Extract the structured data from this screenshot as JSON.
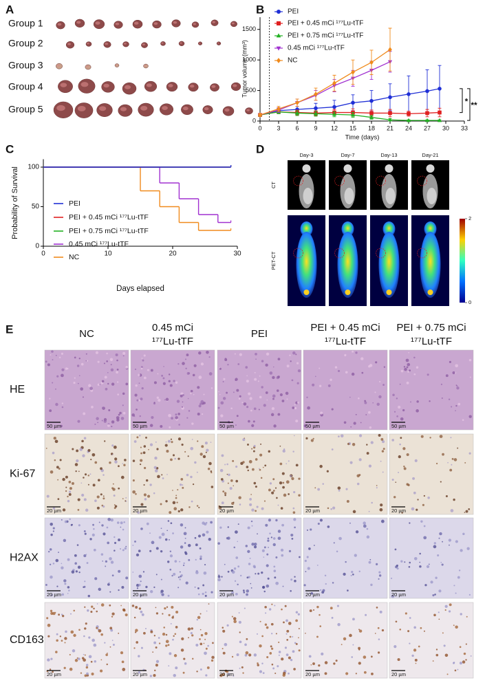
{
  "panel_a": {
    "label": "A",
    "groups": [
      "Group 1",
      "Group 2",
      "Group 3",
      "Group 4",
      "Group 5"
    ]
  },
  "chart_data": [
    {
      "type": "line",
      "label": "B",
      "x_label": "Time (days)",
      "y_label": "Tumor volume (mm³)",
      "xlim": [
        0,
        33
      ],
      "xticks": [
        0,
        3,
        6,
        9,
        12,
        15,
        18,
        21,
        24,
        27,
        30,
        33
      ],
      "ylim": [
        0,
        1700
      ],
      "yticks": [
        0,
        500,
        1000,
        1500
      ],
      "vline_x": 1.5,
      "series": [
        {
          "name": "PEI",
          "color": "#1f2fd6",
          "marker": "circle",
          "x": [
            0,
            3,
            6,
            9,
            12,
            15,
            18,
            21,
            24,
            27,
            29
          ],
          "values": [
            100,
            170,
            190,
            210,
            230,
            300,
            330,
            390,
            440,
            490,
            530
          ],
          "errors": [
            20,
            40,
            50,
            80,
            110,
            130,
            170,
            220,
            300,
            350,
            380
          ]
        },
        {
          "name": "PEI + 0.45 mCi ¹⁷⁷Lu-tTF",
          "color": "#e02020",
          "marker": "square",
          "x": [
            0,
            3,
            6,
            9,
            12,
            15,
            18,
            21,
            24,
            27,
            29
          ],
          "values": [
            100,
            150,
            140,
            130,
            140,
            140,
            130,
            130,
            120,
            130,
            140
          ],
          "errors": [
            20,
            30,
            40,
            40,
            50,
            60,
            50,
            60,
            40,
            60,
            70
          ]
        },
        {
          "name": "PEI + 0.75 mCi ¹⁷⁷Lu-tTF",
          "color": "#22b022",
          "marker": "triangle-up",
          "x": [
            0,
            3,
            6,
            9,
            12,
            15,
            18,
            21,
            24,
            27,
            29
          ],
          "values": [
            100,
            150,
            130,
            120,
            110,
            100,
            60,
            20,
            10,
            10,
            10
          ],
          "errors": [
            20,
            30,
            40,
            40,
            40,
            40,
            30,
            20,
            10,
            10,
            10
          ]
        },
        {
          "name": "0.45 mCi ¹⁷⁷Lu-tTF",
          "color": "#a030d0",
          "marker": "triangle-down",
          "x": [
            0,
            3,
            6,
            9,
            12,
            15,
            18,
            21
          ],
          "values": [
            100,
            180,
            300,
            420,
            580,
            700,
            830,
            970
          ],
          "errors": [
            20,
            40,
            60,
            80,
            100,
            130,
            150,
            170
          ]
        },
        {
          "name": "NC",
          "color": "#f08a1c",
          "marker": "diamond",
          "x": [
            0,
            3,
            6,
            9,
            12,
            15,
            18,
            21
          ],
          "values": [
            100,
            200,
            300,
            440,
            620,
            800,
            960,
            1170
          ],
          "errors": [
            20,
            40,
            60,
            100,
            130,
            200,
            200,
            350
          ]
        }
      ],
      "significance": [
        {
          "label": "*",
          "series": [
            0,
            1
          ]
        },
        {
          "label": "**",
          "series": [
            0,
            2
          ]
        }
      ]
    },
    {
      "type": "line",
      "step": true,
      "label": "C",
      "x_label": "Days elapsed",
      "y_label": "Probability of Survival",
      "xlim": [
        0,
        30
      ],
      "xticks": [
        0,
        10,
        20,
        30
      ],
      "ylim": [
        0,
        110
      ],
      "yticks": [
        0,
        50,
        100
      ],
      "series": [
        {
          "name": "PEI",
          "color": "#1f2fd6",
          "x": [
            0,
            29
          ],
          "values": [
            100,
            100
          ]
        },
        {
          "name": "PEI + 0.45 mCi ¹⁷⁷Lu-tTF",
          "color": "#e02020",
          "x": [
            0,
            29
          ],
          "values": [
            100,
            100
          ]
        },
        {
          "name": "PEI + 0.75 mCi ¹⁷⁷Lu-tTF",
          "color": "#22b022",
          "x": [
            0,
            29
          ],
          "values": [
            100,
            100
          ]
        },
        {
          "name": "0.45 mCi ¹⁷⁷Lu-tTF",
          "color": "#a030d0",
          "x": [
            0,
            18,
            21,
            24,
            27,
            29
          ],
          "values": [
            100,
            80,
            60,
            40,
            30,
            30
          ]
        },
        {
          "name": "NC",
          "color": "#f08a1c",
          "x": [
            0,
            15,
            18,
            21,
            24,
            29
          ],
          "values": [
            100,
            70,
            50,
            30,
            20,
            20
          ]
        }
      ]
    }
  ],
  "panel_d": {
    "label": "D",
    "days": [
      "Day-3",
      "Day-7",
      "Day-13",
      "Day-21"
    ],
    "rows": [
      "CT",
      "PET-CT"
    ],
    "colorbar": {
      "lim": [
        0,
        2
      ],
      "ticks": [
        0,
        2
      ]
    }
  },
  "panel_e": {
    "label": "E",
    "columns": [
      [
        "NC"
      ],
      [
        "0.45 mCi",
        "¹⁷⁷Lu-tTF"
      ],
      [
        "PEI"
      ],
      [
        "PEI + 0.45 mCi",
        "¹⁷⁷Lu-tTF"
      ],
      [
        "PEI + 0.75 mCi",
        "¹⁷⁷Lu-tTF"
      ]
    ],
    "rows": [
      {
        "name": "HE",
        "scale_bar": "50 µm"
      },
      {
        "name": "Ki-67",
        "scale_bar": "20 µm"
      },
      {
        "name": "H2AX",
        "scale_bar": "20 µm"
      },
      {
        "name": "CD163",
        "scale_bar": "20 µm"
      }
    ]
  }
}
